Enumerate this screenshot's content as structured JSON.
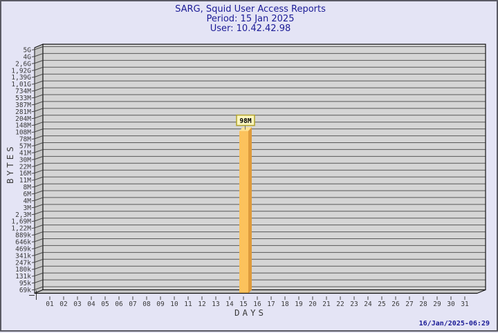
{
  "window": {
    "bg": "#e4e4f5",
    "border_color": "#5a5a64"
  },
  "header": {
    "title": "SARG, Squid User Access Reports",
    "period": "Period: 15 Jan 2025",
    "user": "User: 10.42.42.98",
    "color": "#1b1b96"
  },
  "footer": {
    "generated": "16/Jan/2025-06:29"
  },
  "chart_data": {
    "type": "bar",
    "title": "SARG, Squid User Access Reports",
    "subtitle": [
      "Period: 15 Jan 2025",
      "User: 10.42.42.98"
    ],
    "xlabel": "DAYS",
    "ylabel": "BYTES",
    "y_scale": "log",
    "grid": "horizontal",
    "x_categories": [
      "01",
      "02",
      "03",
      "04",
      "05",
      "06",
      "07",
      "08",
      "09",
      "10",
      "11",
      "12",
      "13",
      "14",
      "15",
      "16",
      "17",
      "18",
      "19",
      "20",
      "21",
      "22",
      "23",
      "24",
      "25",
      "26",
      "27",
      "28",
      "29",
      "30",
      "31"
    ],
    "y_tick_labels_top_to_bottom": [
      "5G",
      "4G",
      "2,6G",
      "1,92G",
      "1,39G",
      "1,01G",
      "734M",
      "533M",
      "387M",
      "281M",
      "204M",
      "148M",
      "108M",
      "78M",
      "57M",
      "41M",
      "30M",
      "22M",
      "16M",
      "11M",
      "8M",
      "6M",
      "4M",
      "3M",
      "2,3M",
      "1,69M",
      "1,22M",
      "889k",
      "646k",
      "469k",
      "341k",
      "247k",
      "180k",
      "131k",
      "95k",
      "69k"
    ],
    "bars": [
      {
        "day": "15",
        "value_label": "98M",
        "value_bytes": 98000000
      }
    ],
    "colors": {
      "bar_face": "#fcc25c",
      "bar_side": "#de9b3c",
      "bar_top": "#ffe394",
      "plot_face": "#d5d5d5",
      "plot_side": "#c7c7c7",
      "gridline": "#585858",
      "edge": "#111111",
      "tick_text": "#3a3a3a",
      "value_box_bg": "#fbf6be",
      "value_box_border": "#b2a32c"
    }
  }
}
